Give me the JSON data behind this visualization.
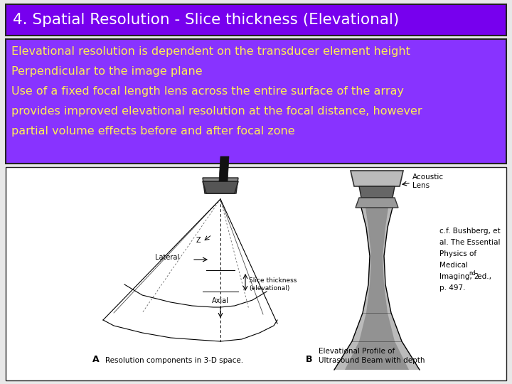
{
  "title": "4. Spatial Resolution - Slice thickness (Elevational)",
  "title_bg": "#7700ee",
  "title_color": "#ffffff",
  "title_fontsize": 15.5,
  "body_bg": "#8833ff",
  "body_color": "#ffee55",
  "body_text": [
    "Elevational resolution is dependent on the transducer element height",
    "Perpendicular to the image plane",
    "Use of a fixed focal length lens across the entire surface of the array",
    "provides improved elevational resolution at the focal distance, however",
    "partial volume effects before and after focal zone"
  ],
  "body_fontsize": 11.5,
  "ref_fontsize": 7.5,
  "slide_bg": "#e8e8e8",
  "border_color": "#333333"
}
